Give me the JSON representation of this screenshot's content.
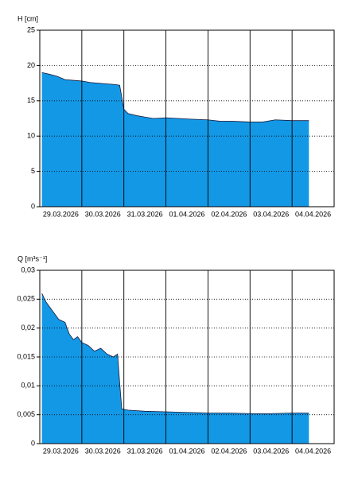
{
  "chart_data": [
    {
      "type": "area",
      "ylabel": "H [cm]",
      "color": "#1398e6",
      "line_color": "#1a1a3a",
      "grid": true,
      "xlim": [
        0,
        7
      ],
      "ylim": [
        0,
        25
      ],
      "yticks": [
        0,
        5,
        10,
        15,
        20,
        25
      ],
      "xticks": [
        {
          "value": 0.5,
          "label": "29.03.2026"
        },
        {
          "value": 1.5,
          "label": "30.03.2026"
        },
        {
          "value": 2.5,
          "label": "31.03.2026"
        },
        {
          "value": 3.5,
          "label": "01.04.2026"
        },
        {
          "value": 4.5,
          "label": "02.04.2026"
        },
        {
          "value": 5.5,
          "label": "03.04.2026"
        },
        {
          "value": 6.5,
          "label": "04.04.2026"
        }
      ],
      "xgrid": [
        1,
        2,
        3,
        4,
        5,
        6
      ],
      "x": [
        0.05,
        0.2,
        0.4,
        0.6,
        0.8,
        1.0,
        1.2,
        1.4,
        1.6,
        1.8,
        1.9,
        1.95,
        2.0,
        2.1,
        2.3,
        2.5,
        2.7,
        3.0,
        3.3,
        3.6,
        4.0,
        4.3,
        4.6,
        5.0,
        5.3,
        5.6,
        6.0,
        6.4
      ],
      "values": [
        19,
        18.8,
        18.5,
        18,
        17.9,
        17.8,
        17.6,
        17.5,
        17.4,
        17.3,
        17.2,
        15.5,
        13.8,
        13.2,
        12.9,
        12.7,
        12.5,
        12.6,
        12.5,
        12.4,
        12.3,
        12.1,
        12.1,
        12.0,
        12.0,
        12.3,
        12.2,
        12.2
      ]
    },
    {
      "type": "area",
      "ylabel": "Q [m³s⁻¹]",
      "color": "#1398e6",
      "line_color": "#1a1a3a",
      "grid": true,
      "xlim": [
        0,
        7
      ],
      "ylim": [
        0,
        0.03
      ],
      "yticks": [
        0,
        {
          "value": 0.005,
          "label": "0,005"
        },
        {
          "value": 0.01,
          "label": "0,01"
        },
        {
          "value": 0.015,
          "label": "0,015"
        },
        {
          "value": 0.02,
          "label": "0,02"
        },
        {
          "value": 0.025,
          "label": "0,025"
        },
        {
          "value": 0.03,
          "label": "0,03"
        }
      ],
      "xticks": [
        {
          "value": 0.5,
          "label": "29.03.2026"
        },
        {
          "value": 1.5,
          "label": "30.03.2026"
        },
        {
          "value": 2.5,
          "label": "31.03.2026"
        },
        {
          "value": 3.5,
          "label": "01.04.2026"
        },
        {
          "value": 4.5,
          "label": "02.04.2026"
        },
        {
          "value": 5.5,
          "label": "03.04.2026"
        },
        {
          "value": 6.5,
          "label": "04.04.2026"
        }
      ],
      "xgrid": [
        1,
        2,
        3,
        4,
        5,
        6
      ],
      "x": [
        0.05,
        0.15,
        0.3,
        0.45,
        0.6,
        0.7,
        0.8,
        0.9,
        1.0,
        1.15,
        1.3,
        1.45,
        1.6,
        1.75,
        1.85,
        1.9,
        1.95,
        2.1,
        2.5,
        3.0,
        3.5,
        4.0,
        4.5,
        5.0,
        5.5,
        6.0,
        6.4
      ],
      "values": [
        0.026,
        0.0245,
        0.023,
        0.0215,
        0.021,
        0.019,
        0.018,
        0.0185,
        0.0175,
        0.017,
        0.016,
        0.0165,
        0.0155,
        0.015,
        0.0155,
        0.0105,
        0.006,
        0.0058,
        0.0056,
        0.0055,
        0.0054,
        0.0053,
        0.0053,
        0.0052,
        0.0052,
        0.0053,
        0.0053
      ]
    }
  ]
}
